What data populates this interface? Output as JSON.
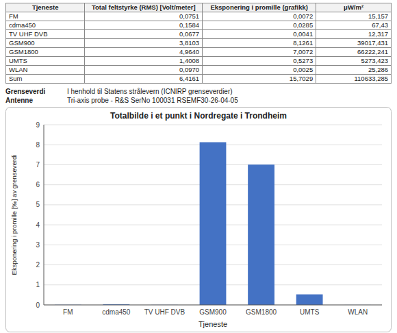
{
  "chart_data": [
    {
      "type": "bar",
      "title": "Totalbilde i et punkt i Nordregate i Trondheim",
      "xlabel": "Tjeneste",
      "ylabel": "Eksponering i promille [‰] av grenseverdi",
      "categories": [
        "FM",
        "cdma450",
        "TV UHF DVB",
        "GSM900",
        "GSM1800",
        "UMTS",
        "WLAN"
      ],
      "values": [
        0.0072,
        0.0285,
        0.0041,
        8.1261,
        7.0072,
        0.5273,
        0.0025
      ],
      "color": "#4472C4",
      "ylim": [
        0,
        9
      ],
      "yticks": [
        0,
        1,
        2,
        3,
        4,
        5,
        6,
        7,
        8,
        9
      ],
      "grid": true
    },
    {
      "type": "table",
      "columns": [
        "Tjeneste",
        "Total feltstyrke (RMS) [Volt/meter]",
        "Eksponering i promille (grafikk)",
        "μW/m²"
      ],
      "rows": [
        [
          "FM",
          "0,0751",
          "0,0072",
          "15,157"
        ],
        [
          "cdma450",
          "0,1584",
          "0,0285",
          "67,43"
        ],
        [
          "TV UHF DVB",
          "0,0677",
          "0,0041",
          "12,317"
        ],
        [
          "GSM900",
          "3,8103",
          "8,1261",
          "39017,431"
        ],
        [
          "GSM1800",
          "4,9640",
          "7,0072",
          "66222,241"
        ],
        [
          "UMTS",
          "1,4008",
          "0,5273",
          "5273,423"
        ],
        [
          "WLAN",
          "0,0970",
          "0,0025",
          "25,286"
        ],
        [
          "Sum",
          "6,4161",
          "15,7029",
          "110633,285"
        ]
      ],
      "annotations": [
        "Grenseverdi",
        "I henhold til Statens strålevern (ICNIRP grenseverdier)",
        "Antenne",
        "Tri-axis probe - R&S SerNo 100031    RSEMF30-26-04-05"
      ]
    }
  ]
}
